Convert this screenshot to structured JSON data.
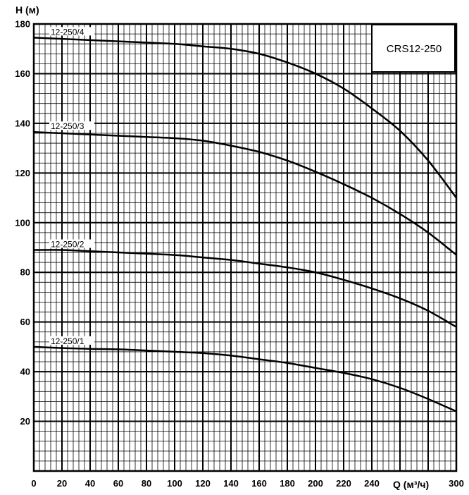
{
  "chart_data": {
    "type": "line",
    "title": "CRS12-250",
    "xlabel": "Q (м³/ч)",
    "ylabel": "H (м)",
    "xlim": [
      0,
      300
    ],
    "ylim": [
      0,
      180
    ],
    "x_ticks": [
      0,
      20,
      40,
      60,
      80,
      100,
      120,
      140,
      160,
      180,
      200,
      220,
      240,
      300
    ],
    "y_ticks": [
      20,
      40,
      60,
      80,
      100,
      120,
      140,
      160,
      180
    ],
    "grid": true,
    "x": [
      0,
      20,
      40,
      60,
      80,
      100,
      120,
      140,
      160,
      180,
      200,
      220,
      240,
      260,
      280,
      300
    ],
    "series": [
      {
        "name": "12-250/4",
        "values": [
          174.5,
          174,
          173.5,
          173,
          172.5,
          172,
          171,
          170,
          168,
          164.5,
          160,
          154,
          146,
          137,
          125,
          110
        ]
      },
      {
        "name": "12-250/3",
        "values": [
          136.5,
          136,
          135.5,
          135,
          134.5,
          134,
          133,
          131,
          128.5,
          125,
          120.5,
          115.5,
          110,
          103.5,
          96,
          87
        ]
      },
      {
        "name": "12-250/2",
        "values": [
          89,
          89,
          88.5,
          88,
          87.5,
          87,
          86,
          85,
          83.5,
          82,
          80,
          77,
          73.5,
          69.5,
          64.5,
          58
        ]
      },
      {
        "name": "12-250/1",
        "values": [
          50,
          49.5,
          49.2,
          49,
          48.5,
          48,
          47.5,
          46.5,
          45,
          43.5,
          41.5,
          39.5,
          37,
          33.5,
          29,
          24
        ]
      }
    ]
  }
}
